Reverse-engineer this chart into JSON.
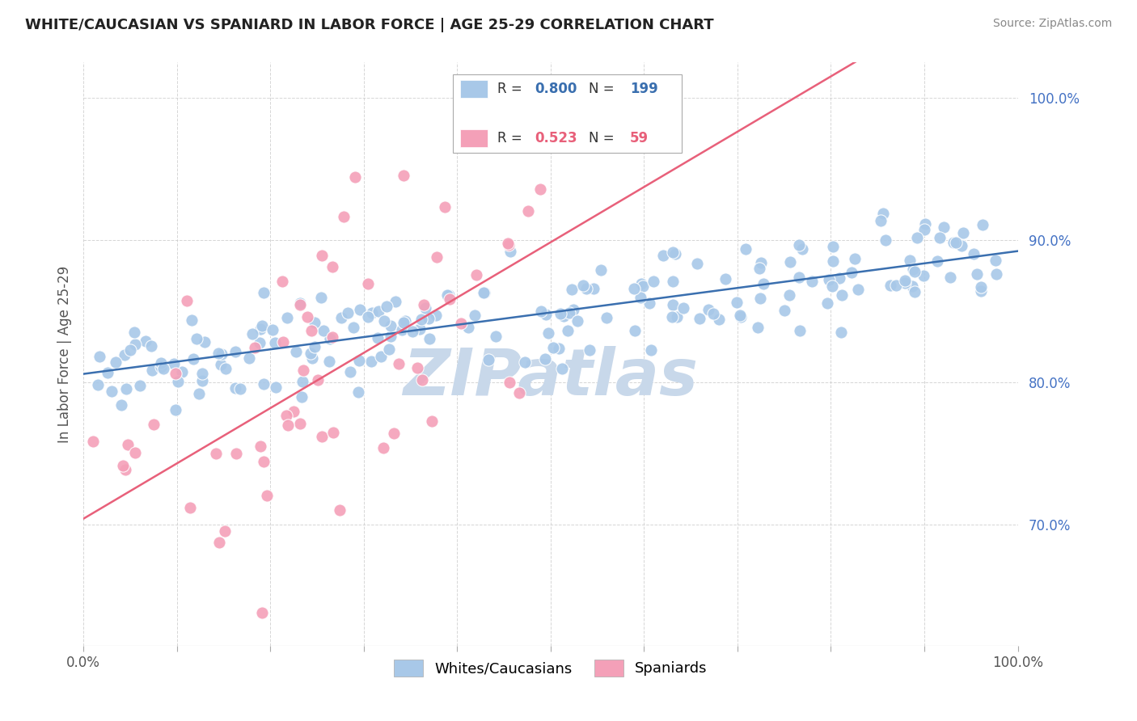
{
  "title": "WHITE/CAUCASIAN VS SPANIARD IN LABOR FORCE | AGE 25-29 CORRELATION CHART",
  "source": "Source: ZipAtlas.com",
  "ylabel": "In Labor Force | Age 25-29",
  "x_range": [
    0.0,
    1.0
  ],
  "y_range": [
    0.615,
    1.025
  ],
  "legend_blue_label": "Whites/Caucasians",
  "legend_pink_label": "Spaniards",
  "R_blue": 0.8,
  "N_blue": 199,
  "R_pink": 0.523,
  "N_pink": 59,
  "blue_color": "#a8c8e8",
  "pink_color": "#f4a0b8",
  "trend_blue_color": "#3a6faf",
  "trend_pink_color": "#e8607a",
  "watermark": "ZIPatlas",
  "watermark_color": "#c8d8ea",
  "background_color": "#ffffff",
  "grid_color": "#cccccc",
  "y_tick_positions": [
    0.7,
    0.8,
    0.9,
    1.0
  ],
  "y_tick_labels": [
    "70.0%",
    "80.0%",
    "90.0%",
    "100.0%"
  ],
  "y_tick_color": "#4472c4",
  "title_color": "#222222",
  "source_color": "#888888",
  "axis_label_color": "#555555",
  "seed_blue": 42,
  "seed_pink": 7
}
